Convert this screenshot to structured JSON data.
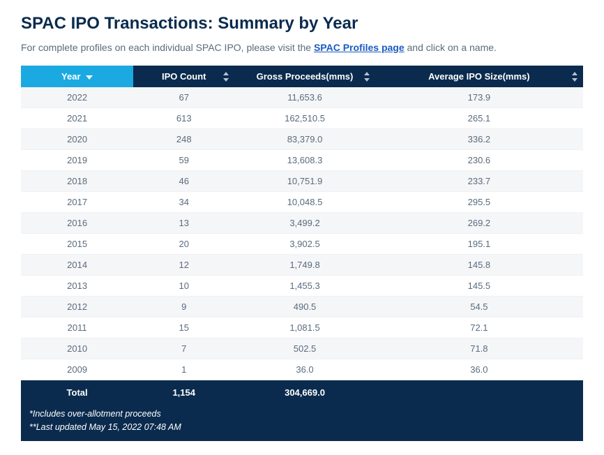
{
  "title": "SPAC IPO Transactions: Summary by Year",
  "subtitle_pre": "For complete profiles on each individual SPAC IPO, please visit the ",
  "subtitle_link": "SPAC Profiles page",
  "subtitle_post": " and click on a name.",
  "table": {
    "columns": [
      "Year",
      "IPO Count",
      "Gross Proceeds(mms)",
      "Average IPO Size(mms)"
    ],
    "sorted_col_index": 0,
    "header_bg": "#0a2b4e",
    "header_sorted_bg": "#1ba9e1",
    "header_fg": "#ffffff",
    "row_odd_bg": "#f5f6f8",
    "row_even_bg": "#ffffff",
    "cell_fg": "#5a6b7d",
    "rows": [
      [
        "2022",
        "67",
        "11,653.6",
        "173.9"
      ],
      [
        "2021",
        "613",
        "162,510.5",
        "265.1"
      ],
      [
        "2020",
        "248",
        "83,379.0",
        "336.2"
      ],
      [
        "2019",
        "59",
        "13,608.3",
        "230.6"
      ],
      [
        "2018",
        "46",
        "10,751.9",
        "233.7"
      ],
      [
        "2017",
        "34",
        "10,048.5",
        "295.5"
      ],
      [
        "2016",
        "13",
        "3,499.2",
        "269.2"
      ],
      [
        "2015",
        "20",
        "3,902.5",
        "195.1"
      ],
      [
        "2014",
        "12",
        "1,749.8",
        "145.8"
      ],
      [
        "2013",
        "10",
        "1,455.3",
        "145.5"
      ],
      [
        "2012",
        "9",
        "490.5",
        "54.5"
      ],
      [
        "2011",
        "15",
        "1,081.5",
        "72.1"
      ],
      [
        "2010",
        "7",
        "502.5",
        "71.8"
      ],
      [
        "2009",
        "1",
        "36.0",
        "36.0"
      ]
    ],
    "totals": [
      "Total",
      "1,154",
      "304,669.0",
      ""
    ]
  },
  "footnotes": [
    "*Includes over-allotment proceeds",
    "**Last updated May 15, 2022 07:48 AM"
  ]
}
